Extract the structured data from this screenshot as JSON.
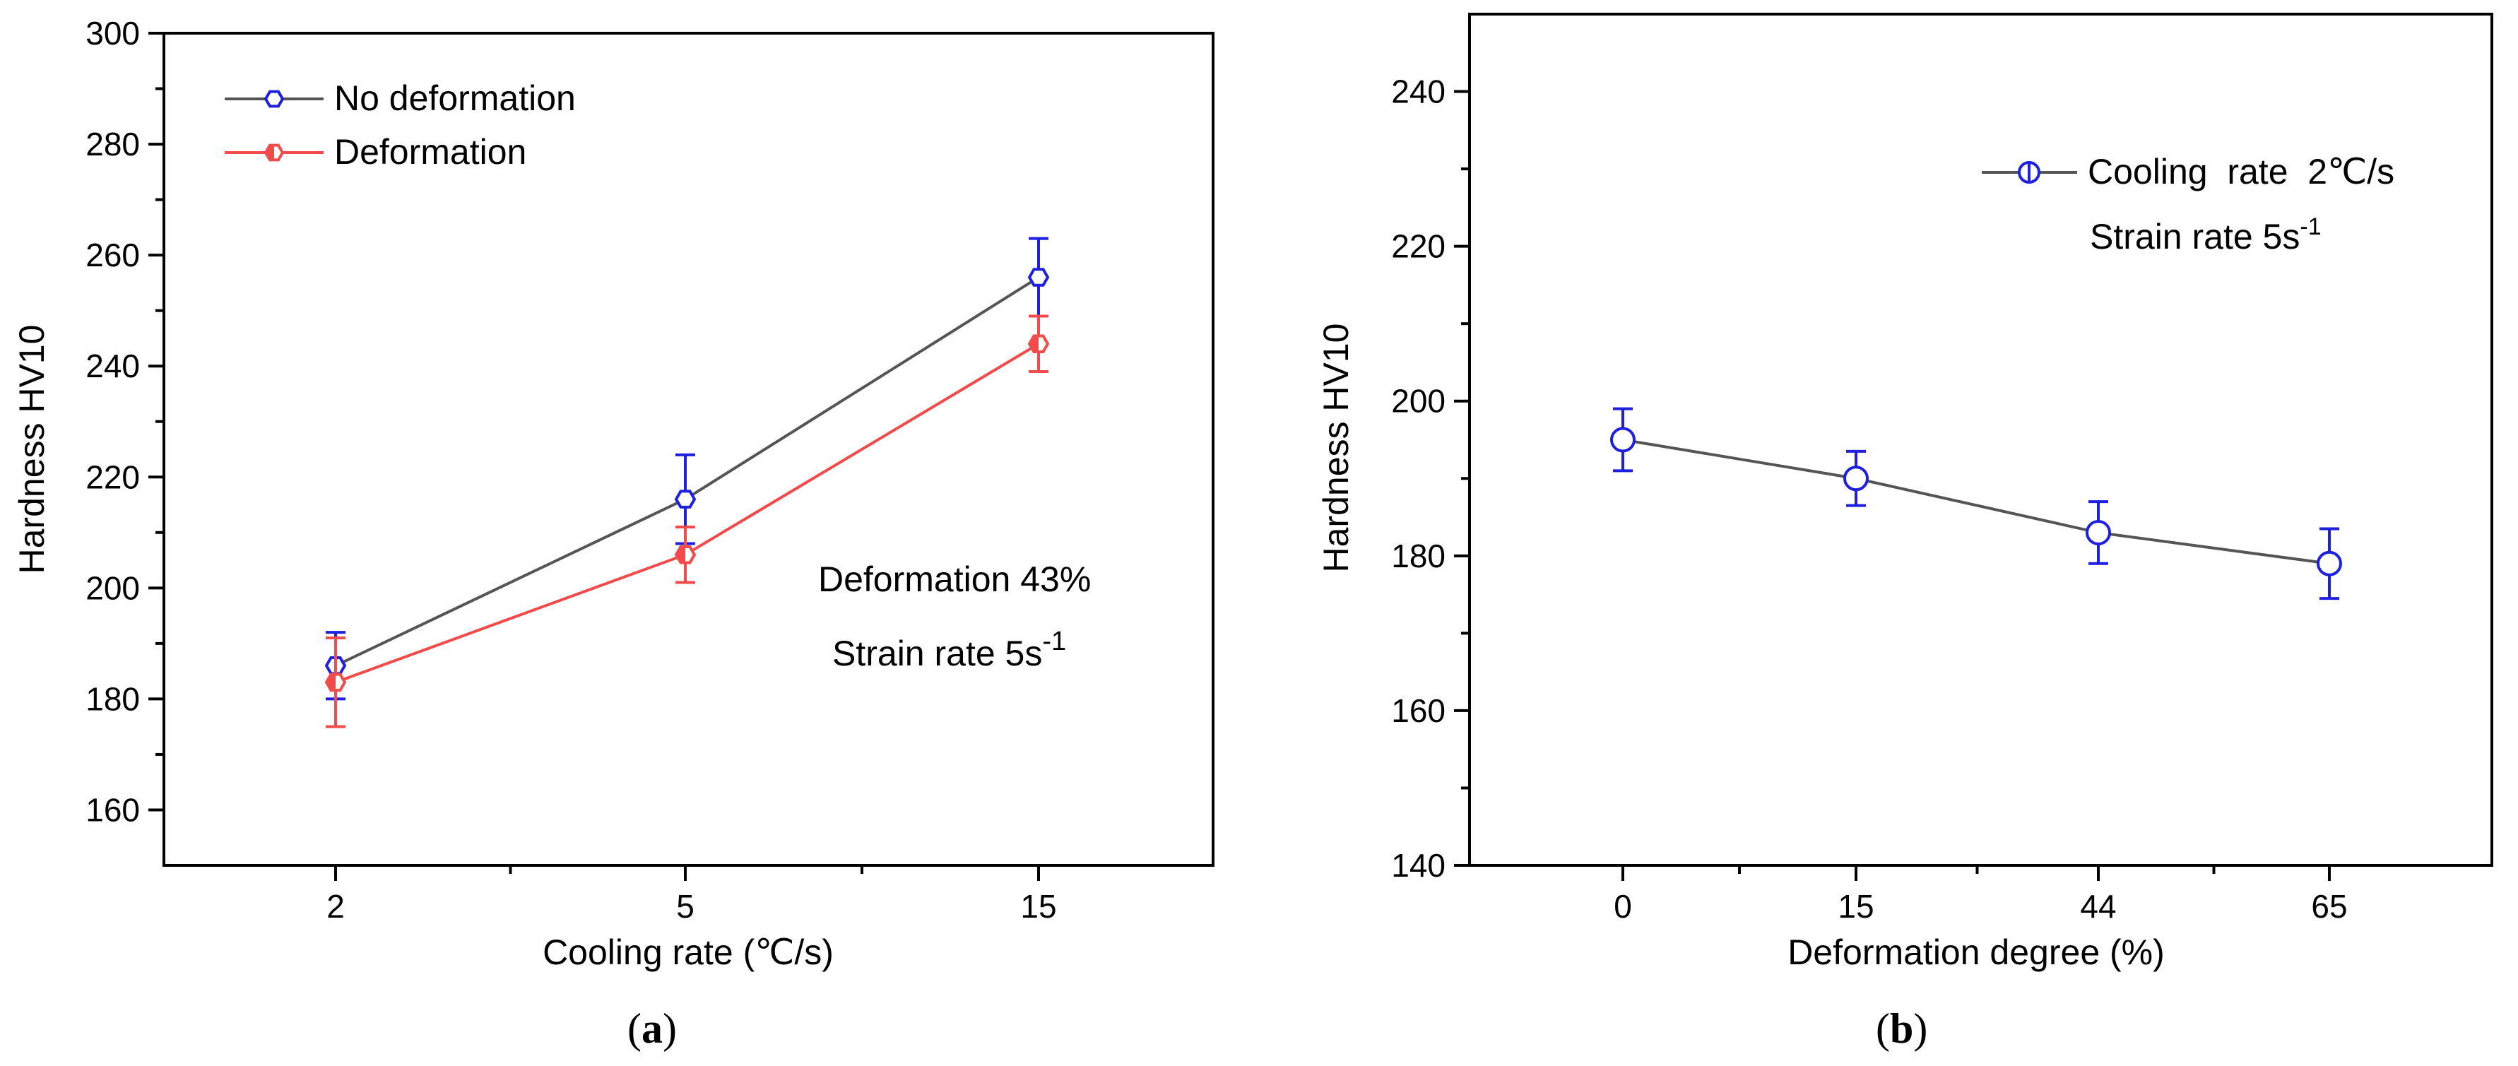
{
  "chart_data": [
    {
      "type": "line",
      "panel_label": "(a)",
      "panel_letter": "a",
      "xlabel": "Cooling rate (℃/s)",
      "ylabel": "Hardness HV10",
      "categories": [
        "2",
        "5",
        "15"
      ],
      "ylim": [
        150,
        300
      ],
      "yticks": [
        160,
        180,
        200,
        220,
        240,
        260,
        280,
        300
      ],
      "series": [
        {
          "name": "No deformation",
          "color": "#555555",
          "marker_color": "#1f1fe0",
          "values": [
            186,
            216,
            256
          ],
          "errors": [
            6,
            8,
            7
          ],
          "marker": "open-hexagon"
        },
        {
          "name": "Deformation",
          "color": "#f24b4b",
          "marker_color": "#f24b4b",
          "values": [
            183,
            206,
            244
          ],
          "errors": [
            8,
            5,
            5
          ],
          "marker": "half-hexagon"
        }
      ],
      "annotations": {
        "line1": "Deformation 43%",
        "line2_prefix": "Strain rate 5s",
        "line2_sup": "-1"
      },
      "legend_position": "top-left"
    },
    {
      "type": "line",
      "panel_label": "(b)",
      "panel_letter": "b",
      "xlabel": "Deformation degree (%)",
      "ylabel": "Hardness HV10",
      "categories": [
        "0",
        "15",
        "44",
        "65"
      ],
      "ylim": [
        140,
        250
      ],
      "yticks": [
        140,
        160,
        180,
        200,
        220,
        240
      ],
      "series": [
        {
          "name": "Cooling  rate  2℃/s",
          "color": "#555555",
          "marker_color": "#1f1fe0",
          "values": [
            195,
            190,
            183,
            179
          ],
          "errors": [
            4,
            3.5,
            4,
            4.5
          ],
          "marker": "open-circle-bar"
        }
      ],
      "annotations": {
        "line2_prefix": "Strain rate 5s",
        "line2_sup": "-1"
      },
      "legend_position": "top-right"
    }
  ]
}
